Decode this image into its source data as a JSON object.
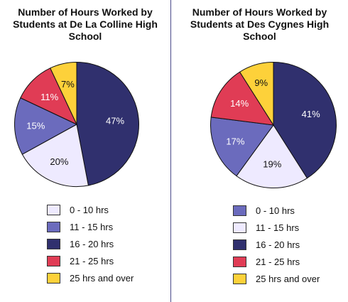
{
  "colors": {
    "c0_10": "#eeeaff",
    "c11_15": "#6b6bbd",
    "c16_20": "#30306e",
    "c21_25": "#e03c55",
    "c25_over": "#fdd13a"
  },
  "chart_data": [
    {
      "type": "pie",
      "title": "Number of Hours Worked by Students at De La Colline High School",
      "start_angle_deg": -90,
      "slices": [
        {
          "label": "47%",
          "value": 47,
          "color": "#30306e",
          "label_color": "#ffffff"
        },
        {
          "label": "20%",
          "value": 20,
          "color": "#eeeaff",
          "label_color": "#111111"
        },
        {
          "label": "15%",
          "value": 15,
          "color": "#6b6bbd",
          "label_color": "#ffffff"
        },
        {
          "label": "11%",
          "value": 11,
          "color": "#e03c55",
          "label_color": "#ffffff"
        },
        {
          "label": "7%",
          "value": 7,
          "color": "#fdd13a",
          "label_color": "#111111"
        }
      ],
      "legend": [
        {
          "label": "0 - 10 hrs",
          "color": "#eeeaff"
        },
        {
          "label": "11 - 15 hrs",
          "color": "#6b6bbd"
        },
        {
          "label": "16 - 20 hrs",
          "color": "#30306e"
        },
        {
          "label": "21 - 25 hrs",
          "color": "#e03c55"
        },
        {
          "label": "25 hrs and over",
          "color": "#fdd13a"
        }
      ]
    },
    {
      "type": "pie",
      "title": "Number of Hours Worked by Students at Des Cygnes High School",
      "start_angle_deg": -90,
      "slices": [
        {
          "label": "41%",
          "value": 41,
          "color": "#30306e",
          "label_color": "#ffffff"
        },
        {
          "label": "19%",
          "value": 19,
          "color": "#eeeaff",
          "label_color": "#111111"
        },
        {
          "label": "17%",
          "value": 17,
          "color": "#6b6bbd",
          "label_color": "#ffffff"
        },
        {
          "label": "14%",
          "value": 14,
          "color": "#e03c55",
          "label_color": "#ffffff"
        },
        {
          "label": "9%",
          "value": 9,
          "color": "#fdd13a",
          "label_color": "#111111"
        }
      ],
      "legend": [
        {
          "label": "0 - 10 hrs",
          "color": "#6b6bbd"
        },
        {
          "label": "11 - 15 hrs",
          "color": "#eeeaff"
        },
        {
          "label": "16 - 20 hrs",
          "color": "#30306e"
        },
        {
          "label": "21 - 25 hrs",
          "color": "#e03c55"
        },
        {
          "label": "25 hrs and over",
          "color": "#fdd13a"
        }
      ]
    }
  ]
}
